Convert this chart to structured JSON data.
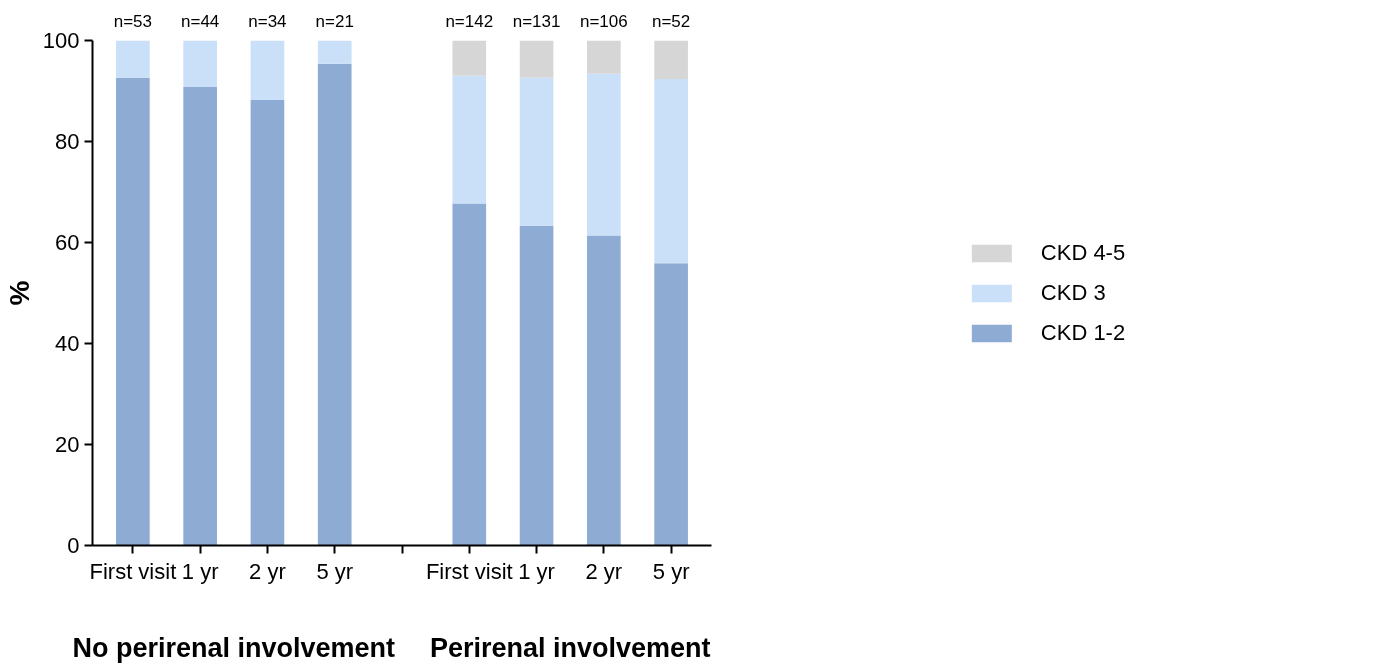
{
  "chart_data": {
    "type": "bar",
    "stacked": true,
    "ylabel": "%",
    "categories": [
      "First visit",
      "1 yr",
      "2 yr",
      "5 yr",
      null,
      "First visit",
      "1 yr",
      "2 yr",
      "5 yr"
    ],
    "series": [
      {
        "name": "CKD 1-2",
        "color": "#8eabd3",
        "values": [
          92.6,
          90.8,
          88.2,
          95.4,
          null,
          67.7,
          63.3,
          61.4,
          55.9
        ]
      },
      {
        "name": "CKD 3",
        "color": "#cadff8",
        "values": [
          7.4,
          9.2,
          11.8,
          4.6,
          null,
          25.3,
          29.3,
          32.0,
          36.5
        ]
      },
      {
        "name": "CKD 4-5",
        "color": "#d6d6d6",
        "values": [
          0,
          0,
          0,
          0,
          null,
          7.0,
          7.4,
          6.6,
          7.6
        ]
      }
    ],
    "annotations": [
      "n=53",
      "n=44",
      "n=34",
      "n=21",
      "n=142",
      "n=131",
      "n=106",
      "n=52",
      "No perirenal involvement",
      "Perirenal involvement"
    ],
    "ylim": [
      0,
      100
    ],
    "yticks": [
      0,
      20,
      40,
      60,
      80,
      100
    ],
    "grid": false,
    "legend": "right"
  }
}
